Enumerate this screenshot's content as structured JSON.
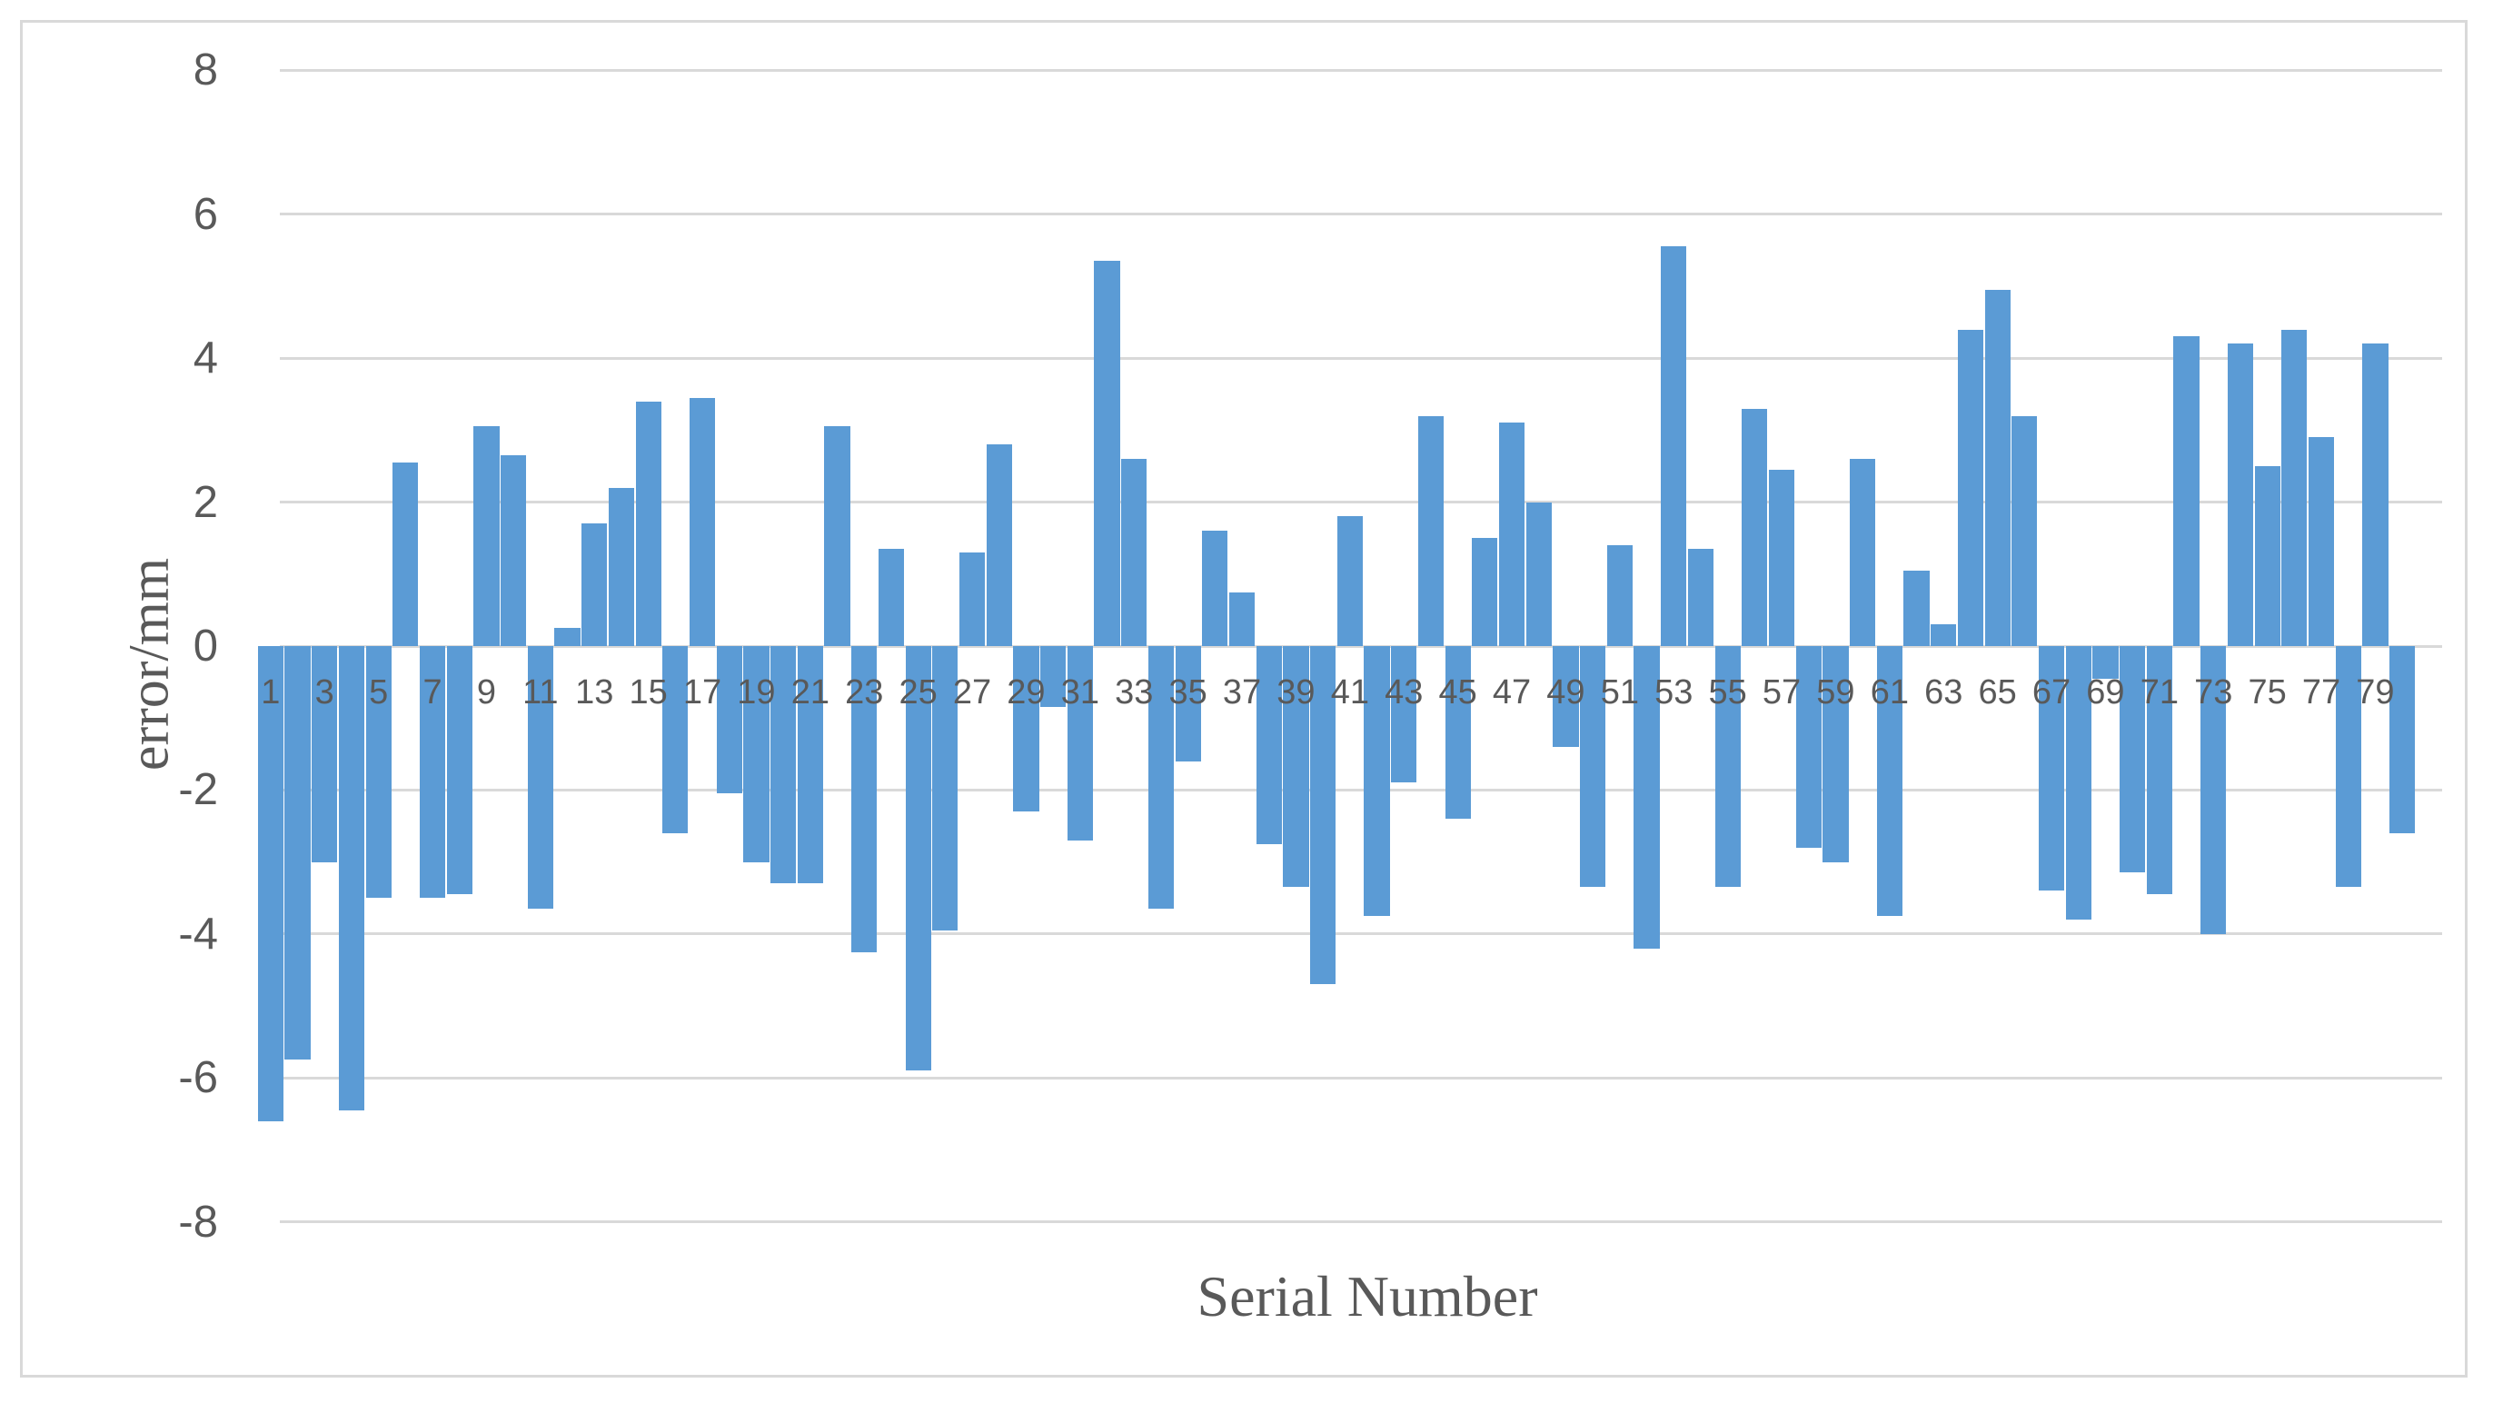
{
  "chart_data": {
    "type": "bar",
    "title": "",
    "xlabel": "Serial Number",
    "ylabel": "error/mm",
    "ylim": [
      -8,
      8
    ],
    "ytick_step": 2,
    "yticks": [
      8,
      6,
      4,
      2,
      0,
      -2,
      -4,
      -6,
      -8
    ],
    "grid": "horizontal",
    "legend": "none",
    "bar_color": "#5b9bd5",
    "categories": [
      1,
      2,
      3,
      4,
      5,
      6,
      7,
      8,
      9,
      10,
      11,
      12,
      13,
      14,
      15,
      16,
      17,
      18,
      19,
      20,
      21,
      22,
      23,
      24,
      25,
      26,
      27,
      28,
      29,
      30,
      31,
      32,
      33,
      34,
      35,
      36,
      37,
      38,
      39,
      40,
      41,
      42,
      43,
      44,
      45,
      46,
      47,
      48,
      49,
      50,
      51,
      52,
      53,
      54,
      55,
      56,
      57,
      58,
      59,
      60,
      61,
      62,
      63,
      64,
      65,
      66,
      67,
      68,
      69,
      70,
      71,
      72,
      73,
      74,
      75,
      76,
      77,
      78,
      79,
      80
    ],
    "x_tick_labels": [
      "1",
      "3",
      "5",
      "7",
      "9",
      "11",
      "13",
      "15",
      "17",
      "19",
      "21",
      "23",
      "25",
      "27",
      "29",
      "31",
      "33",
      "35",
      "37",
      "39",
      "41",
      "43",
      "45",
      "47",
      "49",
      "51",
      "53",
      "55",
      "57",
      "59",
      "61",
      "63",
      "65",
      "67",
      "69",
      "71",
      "73",
      "75",
      "77",
      "79"
    ],
    "values": [
      -6.6,
      -5.75,
      -3.0,
      -6.45,
      -3.5,
      2.55,
      -3.5,
      -3.45,
      3.05,
      2.65,
      -3.65,
      0.25,
      1.7,
      2.2,
      3.4,
      -2.6,
      3.45,
      -2.05,
      -3.0,
      -3.3,
      -3.3,
      3.05,
      -4.25,
      1.35,
      -5.9,
      -3.95,
      1.3,
      2.8,
      -2.3,
      -0.85,
      -2.7,
      5.35,
      2.6,
      -3.65,
      -1.6,
      1.6,
      0.75,
      -2.75,
      -3.35,
      -4.7,
      1.8,
      -3.75,
      -1.9,
      3.2,
      -2.4,
      1.5,
      3.1,
      2.0,
      -1.4,
      -3.35,
      1.4,
      -4.2,
      5.55,
      1.35,
      -3.35,
      3.3,
      2.45,
      -2.8,
      -3.0,
      2.6,
      -3.75,
      1.05,
      0.3,
      4.4,
      4.95,
      3.2,
      -3.4,
      -3.8,
      -0.45,
      -3.15,
      -3.45,
      4.3,
      -4.0,
      4.2,
      2.5,
      4.4,
      2.9,
      -3.35,
      4.2,
      -2.6
    ]
  },
  "colors": {
    "bar": "#5b9bd5",
    "gridline": "#d9d9d9",
    "frame_border": "#d9d9d9",
    "text": "#595959",
    "background": "#ffffff"
  }
}
